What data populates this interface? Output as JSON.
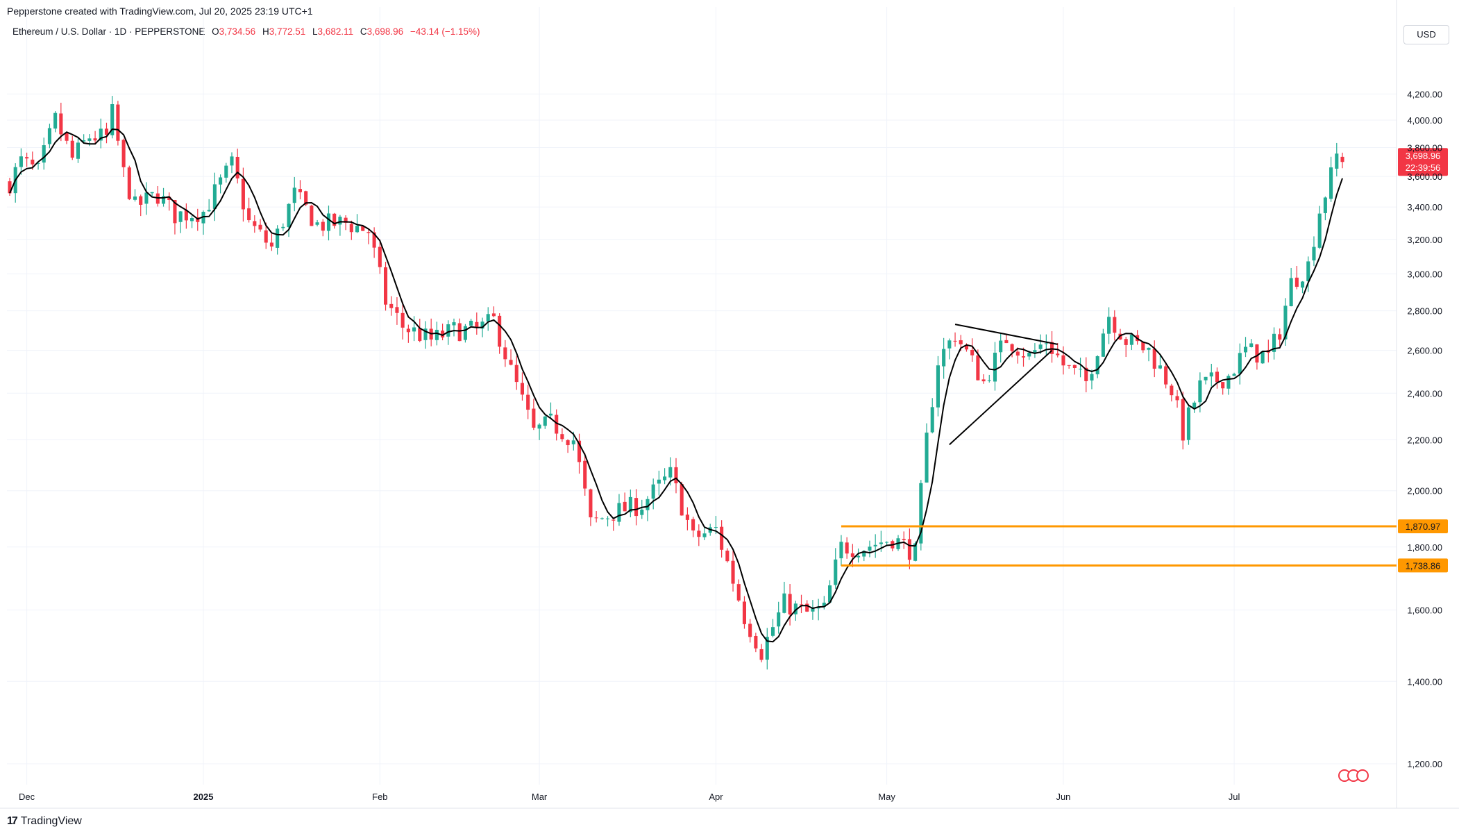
{
  "header": {
    "caption": "Pepperstone created with TradingView.com, Jul 20, 2025 23:19 UTC+1",
    "symbol": "Ethereum / U.S. Dollar · 1D · PEPPERSTONE",
    "open_label": "O",
    "open_value": "3,734.56",
    "high_label": "H",
    "high_value": "3,772.51",
    "low_label": "L",
    "low_value": "3,682.11",
    "close_label": "C",
    "close_value": "3,698.96",
    "change": "−43.14 (−1.15%)"
  },
  "currency_button": "USD",
  "footer": {
    "brand": "TradingView"
  },
  "colors": {
    "up": "#22ab94",
    "down": "#f23645",
    "ma": "#000000",
    "level": "#ff9800",
    "grid": "#f0f3fa"
  },
  "chart_data": {
    "type": "candlestick",
    "y_axis": {
      "ticks": [
        1200,
        1400,
        1600,
        1800,
        2000,
        2200,
        2400,
        2600,
        2800,
        3000,
        3200,
        3400,
        3600,
        3800,
        4000,
        4200
      ],
      "tick_labels": [
        "1,200.00",
        "1,400.00",
        "1,600.00",
        "1,800.00",
        "2,000.00",
        "2,200.00",
        "2,400.00",
        "2,600.00",
        "2,800.00",
        "3,000.00",
        "3,200.00",
        "3,400.00",
        "3,600.00",
        "3,800.00",
        "4,000.00",
        "4,200.00"
      ],
      "range": [
        1100,
        4400
      ]
    },
    "x_axis": {
      "labels": [
        {
          "text": "Dec",
          "date": "2024-12-01",
          "bold": false
        },
        {
          "text": "2025",
          "date": "2025-01-01",
          "bold": true
        },
        {
          "text": "Feb",
          "date": "2025-02-01",
          "bold": false
        },
        {
          "text": "Mar",
          "date": "2025-03-01",
          "bold": false
        },
        {
          "text": "Apr",
          "date": "2025-04-01",
          "bold": false
        },
        {
          "text": "May",
          "date": "2025-05-01",
          "bold": false
        },
        {
          "text": "Jun",
          "date": "2025-06-01",
          "bold": false
        },
        {
          "text": "Jul",
          "date": "2025-07-01",
          "bold": false
        }
      ],
      "range": [
        "2024-11-28",
        "2025-07-20"
      ]
    },
    "price_key_points": [
      [
        "2024-11-28",
        3560
      ],
      [
        "2024-11-30",
        3700
      ],
      [
        "2024-12-03",
        3630
      ],
      [
        "2024-12-06",
        4000
      ],
      [
        "2024-12-09",
        3720
      ],
      [
        "2024-12-12",
        3880
      ],
      [
        "2024-12-15",
        3870
      ],
      [
        "2024-12-16",
        4050
      ],
      [
        "2024-12-18",
        3620
      ],
      [
        "2024-12-20",
        3400
      ],
      [
        "2024-12-24",
        3480
      ],
      [
        "2024-12-27",
        3350
      ],
      [
        "2025-01-01",
        3370
      ],
      [
        "2025-01-06",
        3680
      ],
      [
        "2025-01-09",
        3300
      ],
      [
        "2025-01-13",
        3150
      ],
      [
        "2025-01-17",
        3480
      ],
      [
        "2025-01-21",
        3290
      ],
      [
        "2025-01-26",
        3300
      ],
      [
        "2025-01-30",
        3250
      ],
      [
        "2025-02-02",
        2850
      ],
      [
        "2025-02-05",
        2720
      ],
      [
        "2025-02-10",
        2650
      ],
      [
        "2025-02-14",
        2700
      ],
      [
        "2025-02-18",
        2700
      ],
      [
        "2025-02-21",
        2750
      ],
      [
        "2025-02-24",
        2500
      ],
      [
        "2025-02-28",
        2230
      ],
      [
        "2025-03-03",
        2270
      ],
      [
        "2025-03-07",
        2200
      ],
      [
        "2025-03-10",
        1880
      ],
      [
        "2025-03-14",
        1920
      ],
      [
        "2025-03-19",
        1950
      ],
      [
        "2025-03-24",
        2060
      ],
      [
        "2025-03-28",
        1830
      ],
      [
        "2025-04-01",
        1860
      ],
      [
        "2025-04-06",
        1580
      ],
      [
        "2025-04-09",
        1480
      ],
      [
        "2025-04-13",
        1620
      ],
      [
        "2025-04-17",
        1590
      ],
      [
        "2025-04-20",
        1600
      ],
      [
        "2025-04-23",
        1800
      ],
      [
        "2025-04-27",
        1800
      ],
      [
        "2025-05-02",
        1830
      ],
      [
        "2025-05-06",
        1780
      ],
      [
        "2025-05-08",
        2200
      ],
      [
        "2025-05-10",
        2550
      ],
      [
        "2025-05-13",
        2680
      ],
      [
        "2025-05-18",
        2450
      ],
      [
        "2025-05-22",
        2660
      ],
      [
        "2025-05-26",
        2570
      ],
      [
        "2025-05-29",
        2650
      ],
      [
        "2025-06-01",
        2530
      ],
      [
        "2025-06-05",
        2450
      ],
      [
        "2025-06-09",
        2780
      ],
      [
        "2025-06-12",
        2650
      ],
      [
        "2025-06-16",
        2600
      ],
      [
        "2025-06-20",
        2420
      ],
      [
        "2025-06-22",
        2230
      ],
      [
        "2025-06-25",
        2430
      ],
      [
        "2025-06-30",
        2480
      ],
      [
        "2025-07-03",
        2600
      ],
      [
        "2025-07-07",
        2570
      ],
      [
        "2025-07-09",
        2700
      ],
      [
        "2025-07-11",
        2950
      ],
      [
        "2025-07-14",
        3050
      ],
      [
        "2025-07-16",
        3380
      ],
      [
        "2025-07-18",
        3600
      ],
      [
        "2025-07-19",
        3742
      ],
      [
        "2025-07-20",
        3699
      ]
    ],
    "drawn_lines": [
      {
        "name": "triangle-upper",
        "points": [
          [
            "2025-05-13",
            2730
          ],
          [
            "2025-05-31",
            2630
          ]
        ]
      },
      {
        "name": "triangle-lower",
        "points": [
          [
            "2025-05-12",
            2180
          ],
          [
            "2025-05-30",
            2600
          ]
        ]
      }
    ],
    "horizontal_levels": [
      {
        "value": 1870.97,
        "label": "1,870.97",
        "start": "2025-04-23"
      },
      {
        "value": 1738.86,
        "label": "1,738.86",
        "start": "2025-04-23"
      }
    ],
    "last_price": {
      "value": 3698.96,
      "label": "3,698.96",
      "countdown": "22:39:56"
    }
  }
}
